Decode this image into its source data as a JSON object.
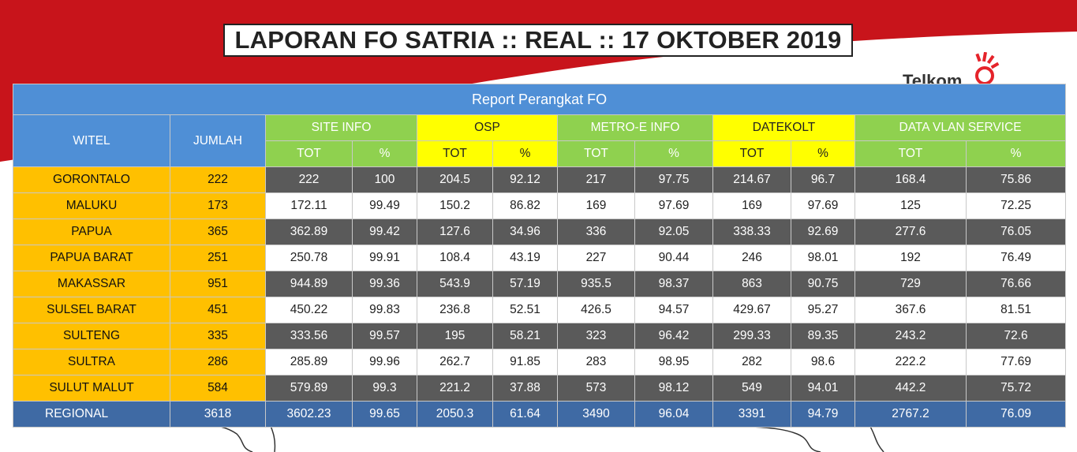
{
  "title": "LAPORAN FO SATRIA :: REAL :: 17 OKTOBER 2019",
  "logo_text": "Telkom",
  "colors": {
    "header_blue": "#4f8fd6",
    "green": "#8fd14f",
    "yellow": "#ffff00",
    "amber": "#ffc000",
    "dark_row": "#5a5a5a",
    "regional_row": "#3f6aa4",
    "banner_red": "#c8141b"
  },
  "table": {
    "caption": "Report Perangkat FO",
    "col_witel": "WITEL",
    "col_jumlah": "JUMLAH",
    "groups": [
      "SITE INFO",
      "OSP",
      "METRO-E INFO",
      "DATEKOLT",
      "DATA VLAN SERVICE"
    ],
    "sub_tot": "TOT",
    "sub_pct": "%",
    "rows": [
      {
        "witel": "GORONTALO",
        "jumlah": "222",
        "vals": [
          "222",
          "100",
          "204.5",
          "92.12",
          "217",
          "97.75",
          "214.67",
          "96.7",
          "168.4",
          "75.86"
        ]
      },
      {
        "witel": "MALUKU",
        "jumlah": "173",
        "vals": [
          "172.11",
          "99.49",
          "150.2",
          "86.82",
          "169",
          "97.69",
          "169",
          "97.69",
          "125",
          "72.25"
        ]
      },
      {
        "witel": "PAPUA",
        "jumlah": "365",
        "vals": [
          "362.89",
          "99.42",
          "127.6",
          "34.96",
          "336",
          "92.05",
          "338.33",
          "92.69",
          "277.6",
          "76.05"
        ]
      },
      {
        "witel": "PAPUA BARAT",
        "jumlah": "251",
        "vals": [
          "250.78",
          "99.91",
          "108.4",
          "43.19",
          "227",
          "90.44",
          "246",
          "98.01",
          "192",
          "76.49"
        ]
      },
      {
        "witel": "MAKASSAR",
        "jumlah": "951",
        "vals": [
          "944.89",
          "99.36",
          "543.9",
          "57.19",
          "935.5",
          "98.37",
          "863",
          "90.75",
          "729",
          "76.66"
        ]
      },
      {
        "witel": "SULSEL BARAT",
        "jumlah": "451",
        "vals": [
          "450.22",
          "99.83",
          "236.8",
          "52.51",
          "426.5",
          "94.57",
          "429.67",
          "95.27",
          "367.6",
          "81.51"
        ]
      },
      {
        "witel": "SULTENG",
        "jumlah": "335",
        "vals": [
          "333.56",
          "99.57",
          "195",
          "58.21",
          "323",
          "96.42",
          "299.33",
          "89.35",
          "243.2",
          "72.6"
        ]
      },
      {
        "witel": "SULTRA",
        "jumlah": "286",
        "vals": [
          "285.89",
          "99.96",
          "262.7",
          "91.85",
          "283",
          "98.95",
          "282",
          "98.6",
          "222.2",
          "77.69"
        ]
      },
      {
        "witel": "SULUT MALUT",
        "jumlah": "584",
        "vals": [
          "579.89",
          "99.3",
          "221.2",
          "37.88",
          "573",
          "98.12",
          "549",
          "94.01",
          "442.2",
          "75.72"
        ]
      }
    ],
    "regional": {
      "witel": "REGIONAL",
      "jumlah": "3618",
      "vals": [
        "3602.23",
        "99.65",
        "2050.3",
        "61.64",
        "3490",
        "96.04",
        "3391",
        "94.79",
        "2767.2",
        "76.09"
      ]
    }
  }
}
